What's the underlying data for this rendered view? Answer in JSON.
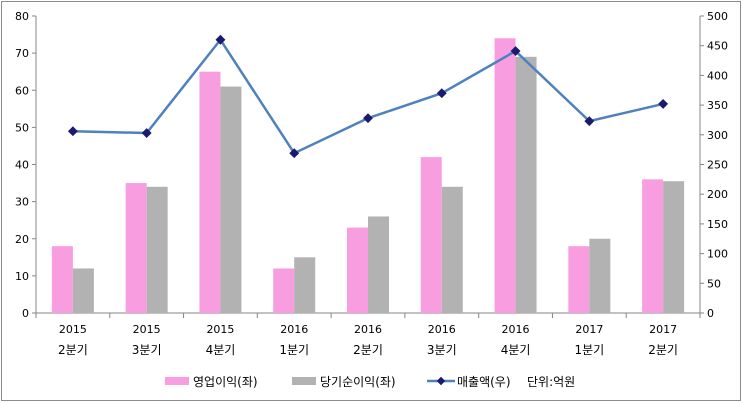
{
  "chart_data": {
    "type": "bar+line",
    "categories": [
      [
        "2015",
        "2분기"
      ],
      [
        "2015",
        "3분기"
      ],
      [
        "2015",
        "4분기"
      ],
      [
        "2016",
        "1분기"
      ],
      [
        "2016",
        "2분기"
      ],
      [
        "2016",
        "3분기"
      ],
      [
        "2016",
        "4분기"
      ],
      [
        "2017",
        "1분기"
      ],
      [
        "2017",
        "2분기"
      ]
    ],
    "series": [
      {
        "name": "영업이익(좌)",
        "type": "bar",
        "axis": "left",
        "color": "#f89ee0",
        "values": [
          18,
          35,
          65,
          12,
          23,
          42,
          74,
          18,
          36
        ]
      },
      {
        "name": "당기순이익(좌)",
        "type": "bar",
        "axis": "left",
        "color": "#b2b2b2",
        "values": [
          12,
          34,
          61,
          15,
          26,
          34,
          69,
          20,
          35.5
        ]
      },
      {
        "name": "매출액(우)",
        "type": "line",
        "axis": "right",
        "color": "#4f81bd",
        "marker_color": "#1a1a6e",
        "values": [
          306,
          303,
          460,
          269,
          328,
          370,
          441,
          323,
          352
        ]
      }
    ],
    "left_axis": {
      "min": 0,
      "max": 80,
      "step": 10
    },
    "right_axis": {
      "min": 0,
      "max": 500,
      "step": 50
    },
    "legend_position": "bottom",
    "unit_note": "단위:억원"
  }
}
